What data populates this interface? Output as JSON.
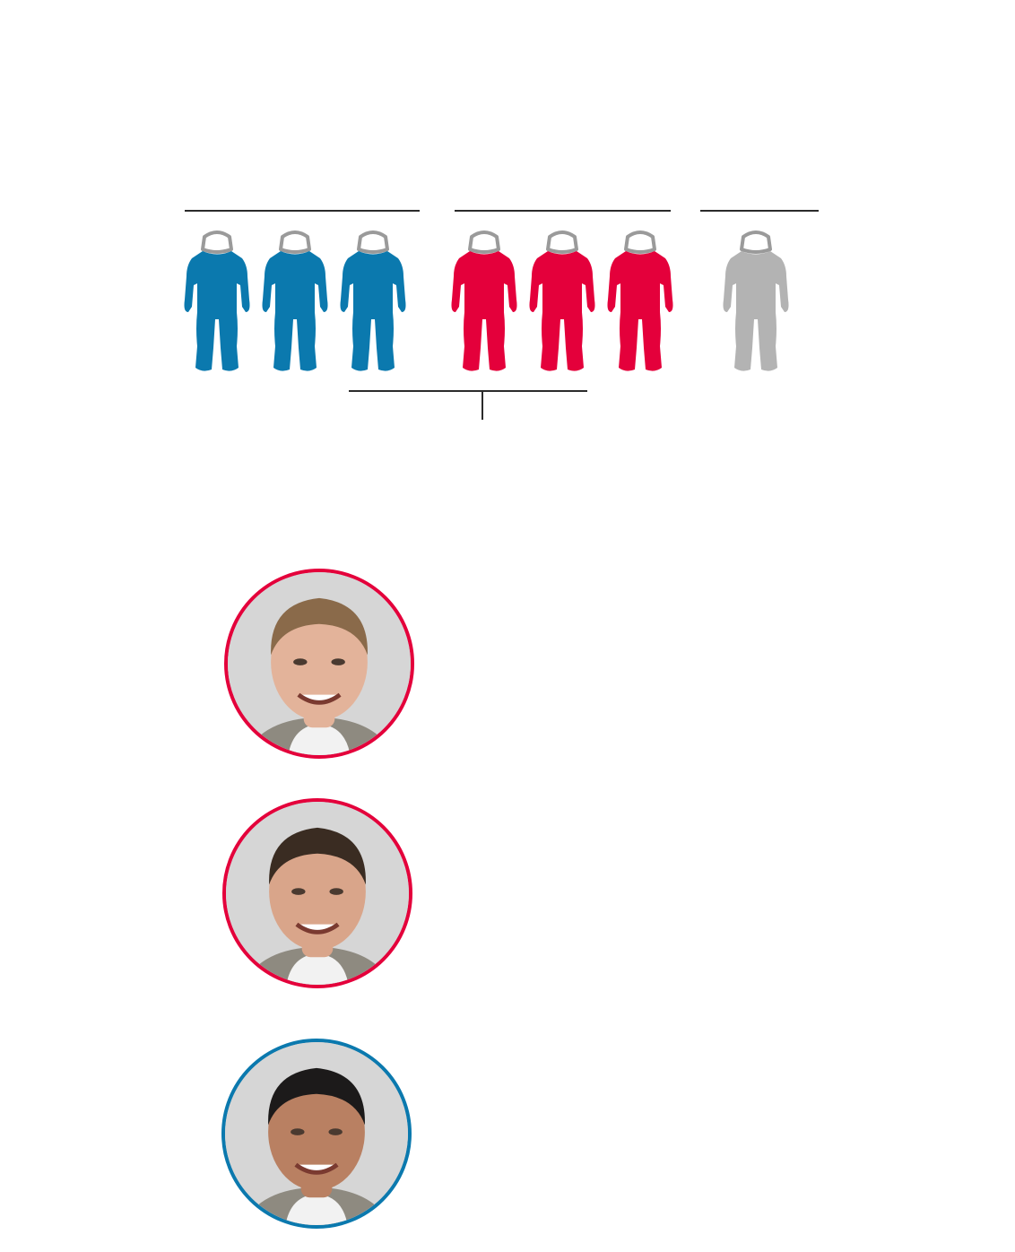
{
  "colors": {
    "blue": "#0b79ae",
    "red": "#e4003b",
    "gray": "#b3b3b3",
    "line": "#2b2b2b",
    "helmet": "#9a9a9a"
  },
  "crew_groups": [
    {
      "count": 3,
      "color": "blue"
    },
    {
      "count": 3,
      "color": "red"
    },
    {
      "count": 1,
      "color": "gray"
    }
  ],
  "figures": [
    {
      "icon": "astronaut-icon",
      "color": "blue"
    },
    {
      "icon": "astronaut-icon",
      "color": "blue"
    },
    {
      "icon": "astronaut-icon",
      "color": "blue"
    },
    {
      "icon": "astronaut-icon",
      "color": "red"
    },
    {
      "icon": "astronaut-icon",
      "color": "red"
    },
    {
      "icon": "astronaut-icon",
      "color": "red"
    },
    {
      "icon": "astronaut-icon",
      "color": "gray"
    }
  ],
  "portraits": [
    {
      "ring_color": "red",
      "skin": "#e3b39a",
      "hair": "#8a6a4a"
    },
    {
      "ring_color": "red",
      "skin": "#d9a58a",
      "hair": "#3a2c22"
    },
    {
      "ring_color": "blue",
      "skin": "#b98062",
      "hair": "#1c1a1a"
    }
  ]
}
